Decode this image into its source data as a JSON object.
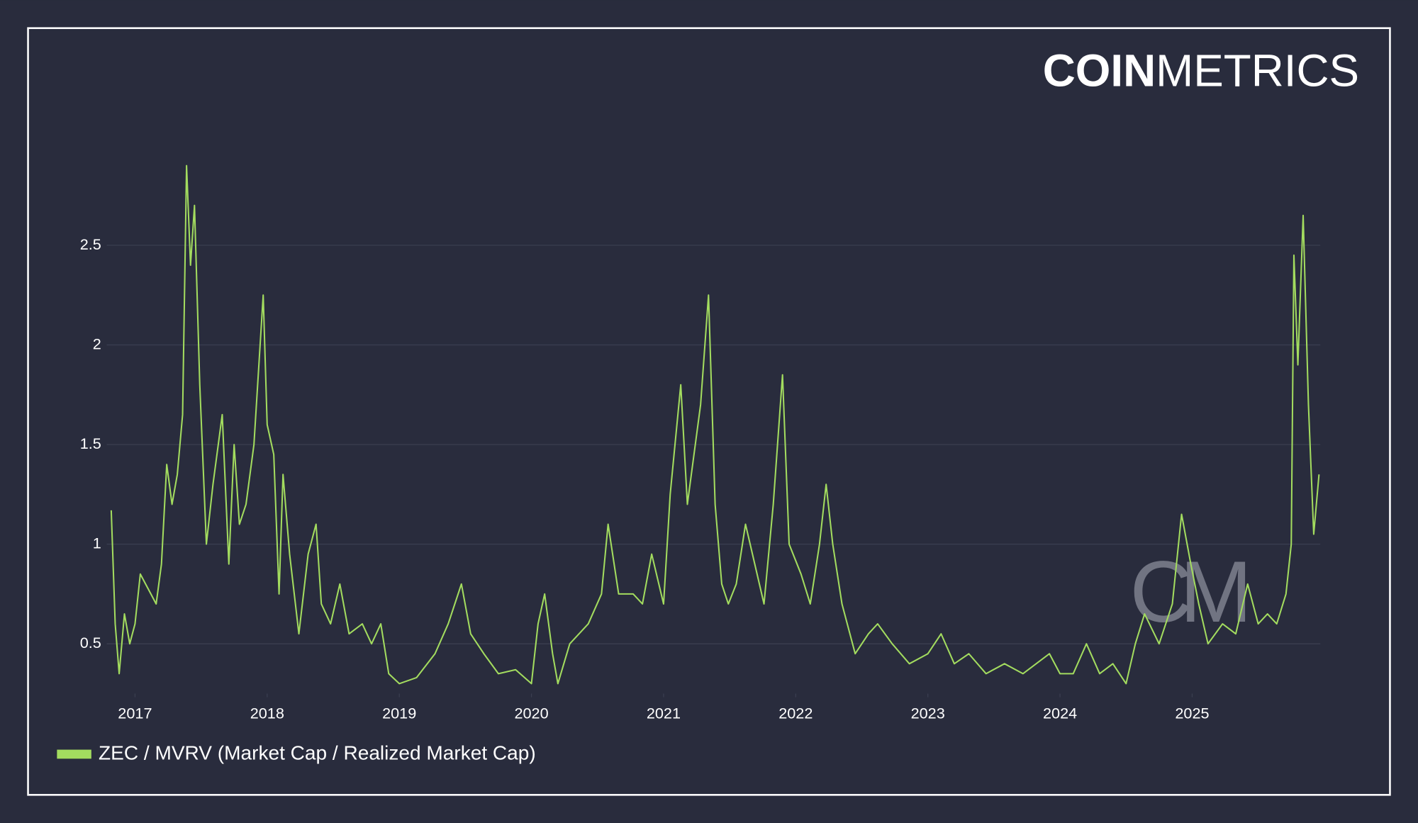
{
  "chart_data": {
    "type": "line",
    "brand": {
      "bold": "COIN",
      "light": "METRICS"
    },
    "watermark": "CM",
    "x": [
      2016.82,
      2016.85,
      2016.88,
      2016.92,
      2016.96,
      2017.0,
      2017.04,
      2017.08,
      2017.12,
      2017.16,
      2017.2,
      2017.24,
      2017.28,
      2017.32,
      2017.36,
      2017.39,
      2017.42,
      2017.45,
      2017.49,
      2017.54,
      2017.59,
      2017.66,
      2017.71,
      2017.75,
      2017.79,
      2017.84,
      2017.9,
      2017.97,
      2018.0,
      2018.05,
      2018.09,
      2018.12,
      2018.17,
      2018.24,
      2018.31,
      2018.37,
      2018.41,
      2018.48,
      2018.55,
      2018.62,
      2018.72,
      2018.79,
      2018.86,
      2018.92,
      2019.0,
      2019.13,
      2019.27,
      2019.37,
      2019.47,
      2019.54,
      2019.64,
      2019.75,
      2019.88,
      2020.0,
      2020.05,
      2020.1,
      2020.16,
      2020.2,
      2020.29,
      2020.43,
      2020.53,
      2020.58,
      2020.66,
      2020.77,
      2020.84,
      2020.91,
      2021.0,
      2021.05,
      2021.13,
      2021.18,
      2021.24,
      2021.28,
      2021.34,
      2021.39,
      2021.44,
      2021.49,
      2021.55,
      2021.62,
      2021.69,
      2021.76,
      2021.83,
      2021.9,
      2021.95,
      2022.04,
      2022.11,
      2022.18,
      2022.23,
      2022.28,
      2022.35,
      2022.45,
      2022.55,
      2022.62,
      2022.73,
      2022.86,
      2023.0,
      2023.1,
      2023.2,
      2023.31,
      2023.44,
      2023.58,
      2023.72,
      2023.92,
      2024.0,
      2024.1,
      2024.2,
      2024.3,
      2024.4,
      2024.5,
      2024.57,
      2024.64,
      2024.75,
      2024.85,
      2024.92,
      2024.99,
      2025.05,
      2025.12,
      2025.23,
      2025.33,
      2025.42,
      2025.5,
      2025.57,
      2025.64,
      2025.71,
      2025.75,
      2025.77,
      2025.8,
      2025.84,
      2025.88,
      2025.92,
      2025.96
    ],
    "series": [
      {
        "name": "ZEC / MVRV (Market Cap / Realized Market Cap)",
        "color": "#a3dc5f",
        "values": [
          1.17,
          0.6,
          0.35,
          0.65,
          0.5,
          0.6,
          0.85,
          0.8,
          0.75,
          0.7,
          0.9,
          1.4,
          1.2,
          1.35,
          1.65,
          2.9,
          2.4,
          2.7,
          1.8,
          1.0,
          1.3,
          1.65,
          0.9,
          1.5,
          1.1,
          1.2,
          1.5,
          2.25,
          1.6,
          1.45,
          0.75,
          1.35,
          0.95,
          0.55,
          0.95,
          1.1,
          0.7,
          0.6,
          0.8,
          0.55,
          0.6,
          0.5,
          0.6,
          0.35,
          0.3,
          0.33,
          0.45,
          0.6,
          0.8,
          0.55,
          0.45,
          0.35,
          0.37,
          0.3,
          0.6,
          0.75,
          0.45,
          0.3,
          0.5,
          0.6,
          0.75,
          1.1,
          0.75,
          0.75,
          0.7,
          0.95,
          0.7,
          1.25,
          1.8,
          1.2,
          1.5,
          1.7,
          2.25,
          1.2,
          0.8,
          0.7,
          0.8,
          1.1,
          0.9,
          0.7,
          1.2,
          1.85,
          1.0,
          0.85,
          0.7,
          1.0,
          1.3,
          1.0,
          0.7,
          0.45,
          0.55,
          0.6,
          0.5,
          0.4,
          0.45,
          0.55,
          0.4,
          0.45,
          0.35,
          0.4,
          0.35,
          0.45,
          0.35,
          0.35,
          0.5,
          0.35,
          0.4,
          0.3,
          0.5,
          0.65,
          0.5,
          0.7,
          1.15,
          0.9,
          0.7,
          0.5,
          0.6,
          0.55,
          0.8,
          0.6,
          0.65,
          0.6,
          0.75,
          1.0,
          2.45,
          1.9,
          2.65,
          1.7,
          1.05,
          1.35
        ]
      }
    ],
    "xlim": [
      2016.82,
      2025.97
    ],
    "xticks": [
      2017,
      2018,
      2019,
      2020,
      2021,
      2022,
      2023,
      2024,
      2025
    ],
    "ylim": [
      0.25,
      2.95
    ],
    "yticks": [
      0.5,
      1,
      1.5,
      2,
      2.5
    ],
    "grid": true
  }
}
